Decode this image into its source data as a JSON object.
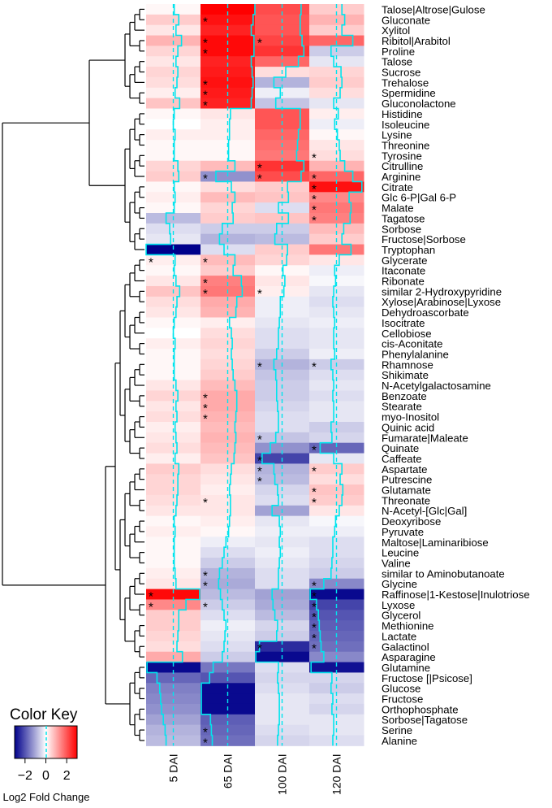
{
  "chart_data": {
    "type": "heatmap",
    "columns": [
      "5 DAI",
      "65 DAI",
      "100 DAI",
      "120 DAI"
    ],
    "rows": [
      "Talose|Altrose|Gulose",
      "Gluconate",
      "Xylitol",
      "Ribitol|Arabitol",
      "Proline",
      "Talose",
      "Sucrose",
      "Trehalose",
      "Spermidine",
      "Gluconolactone",
      "Histidine",
      "Isoleucine",
      "Lysine",
      "Threonine",
      "Tyrosine",
      "Citrulline",
      "Arginine",
      "Citrate",
      "Glc 6-P|Gal 6-P",
      "Malate",
      "Tagatose",
      "Sorbose",
      "Fructose|Sorbose",
      "Tryptophan",
      "Glycerate",
      "Itaconate",
      "Ribonate",
      "similar 2-Hydroxypyridine",
      "Xylose|Arabinose|Lyxose",
      "Dehydroascorbate",
      "Isocitrate",
      "Cellobiose",
      "cis-Aconitate",
      "Phenylalanine",
      "Rhamnose",
      "Shikimate",
      "N-Acetylgalactosamine",
      "Benzoate",
      "Stearate",
      "myo-Inositol",
      "Quinic acid",
      "Fumarate|Maleate",
      "Quinate",
      "Caffeate",
      "Aspartate",
      "Putrescine",
      "Glutamate",
      "Threonate",
      "N-Acetyl-[Glc|Gal]",
      "Deoxyribose",
      "Pyruvate",
      "Maltose|Laminaribiose",
      "Leucine",
      "Valine",
      "similar to Aminobutanoate",
      "Glycine",
      "Raffinose|1-Kestose|Inulotriose",
      "Lyxose",
      "Glycerol",
      "Methionine",
      "Lactate",
      "Galactinol",
      "Asparagine",
      "Glutamine",
      "Fructose [|Psicose]",
      "Glucose",
      "Fructose",
      "Orthophosphate",
      "Sorbose|Tagatose",
      "Serine",
      "Alanine"
    ],
    "values": [
      [
        0.1,
        3.0,
        2.1,
        0.6
      ],
      [
        0.6,
        2.8,
        2.0,
        0.9
      ],
      [
        0.3,
        2.6,
        2.0,
        0.6
      ],
      [
        0.9,
        2.9,
        2.2,
        1.8
      ],
      [
        0.5,
        2.9,
        2.4,
        -0.6
      ],
      [
        0.3,
        2.6,
        1.8,
        -0.3
      ],
      [
        0.5,
        2.7,
        0.4,
        0.5
      ],
      [
        0.4,
        2.8,
        -0.9,
        0.6
      ],
      [
        0.2,
        2.7,
        -0.2,
        0.4
      ],
      [
        0.7,
        2.6,
        -0.7,
        -0.3
      ],
      [
        0.1,
        0.3,
        2.0,
        0.2
      ],
      [
        0.0,
        0.2,
        2.0,
        -0.2
      ],
      [
        0.2,
        0.2,
        1.8,
        0.1
      ],
      [
        0.1,
        0.1,
        1.7,
        0.3
      ],
      [
        0.1,
        0.1,
        1.6,
        0.4
      ],
      [
        0.5,
        0.8,
        2.4,
        0.9
      ],
      [
        0.6,
        -1.3,
        2.1,
        1.8
      ],
      [
        0.1,
        0.4,
        0.6,
        2.8
      ],
      [
        0.2,
        0.8,
        0.7,
        1.4
      ],
      [
        0.1,
        0.5,
        -0.4,
        1.6
      ],
      [
        -0.8,
        0.6,
        0.7,
        1.5
      ],
      [
        -0.4,
        -0.6,
        -0.6,
        0.8
      ],
      [
        -0.3,
        -0.9,
        -0.8,
        0.6
      ],
      [
        -3.0,
        -0.4,
        0.6,
        1.6
      ],
      [
        0.2,
        0.8,
        0.5,
        0.3
      ],
      [
        0.1,
        0.6,
        0.1,
        -0.2
      ],
      [
        0.3,
        1.5,
        0.3,
        -0.1
      ],
      [
        0.7,
        1.6,
        0.2,
        -0.3
      ],
      [
        0.4,
        1.0,
        -0.2,
        -0.4
      ],
      [
        0.3,
        0.9,
        -0.2,
        -0.3
      ],
      [
        0.1,
        0.2,
        -0.3,
        -0.2
      ],
      [
        0.0,
        0.4,
        -0.4,
        -0.3
      ],
      [
        0.2,
        0.5,
        -0.4,
        -0.3
      ],
      [
        0.1,
        0.4,
        -0.6,
        -0.2
      ],
      [
        0.1,
        0.5,
        -0.9,
        -0.6
      ],
      [
        0.1,
        0.6,
        -0.7,
        -0.4
      ],
      [
        0.3,
        0.8,
        -0.6,
        -0.3
      ],
      [
        0.5,
        1.0,
        -0.6,
        -0.4
      ],
      [
        0.3,
        1.0,
        -0.5,
        -0.3
      ],
      [
        0.4,
        0.9,
        -0.4,
        -0.3
      ],
      [
        0.2,
        0.8,
        -0.4,
        -0.6
      ],
      [
        0.3,
        0.9,
        -0.7,
        -0.5
      ],
      [
        0.4,
        0.8,
        -1.3,
        -1.8
      ],
      [
        0.2,
        0.7,
        -2.2,
        -0.3
      ],
      [
        0.6,
        0.4,
        -0.9,
        0.6
      ],
      [
        0.5,
        0.3,
        -0.8,
        0.4
      ],
      [
        0.5,
        0.2,
        -0.5,
        0.7
      ],
      [
        0.4,
        0.3,
        -0.4,
        0.6
      ],
      [
        0.3,
        0.3,
        -1.1,
        0.3
      ],
      [
        0.1,
        0.2,
        -0.3,
        -0.1
      ],
      [
        0.2,
        0.1,
        -0.2,
        -0.2
      ],
      [
        0.1,
        -0.2,
        -0.3,
        -0.4
      ],
      [
        0.1,
        -0.4,
        -0.2,
        -0.4
      ],
      [
        0.1,
        -0.6,
        -0.3,
        -0.5
      ],
      [
        0.2,
        -0.9,
        -0.4,
        -0.6
      ],
      [
        0.3,
        -1.0,
        -0.4,
        -1.4
      ],
      [
        2.9,
        -0.8,
        -1.1,
        -2.9
      ],
      [
        1.4,
        -0.6,
        -1.0,
        -2.2
      ],
      [
        0.6,
        -0.4,
        -0.8,
        -2.0
      ],
      [
        0.6,
        -0.2,
        -0.5,
        -1.9
      ],
      [
        0.5,
        -0.3,
        -0.6,
        -1.8
      ],
      [
        0.4,
        -0.4,
        -2.5,
        -1.7
      ],
      [
        1.0,
        -0.6,
        -2.9,
        -1.4
      ],
      [
        -2.9,
        -1.6,
        -0.4,
        -2.8
      ],
      [
        -1.8,
        -2.0,
        -0.5,
        -0.5
      ],
      [
        -1.5,
        -2.9,
        -0.4,
        -0.6
      ],
      [
        -1.4,
        -2.9,
        -0.3,
        -0.4
      ],
      [
        -1.3,
        -2.9,
        -0.3,
        -0.5
      ],
      [
        -1.1,
        -1.9,
        -0.3,
        -0.3
      ],
      [
        -0.9,
        -1.8,
        -0.4,
        -0.3
      ],
      [
        -0.8,
        -1.7,
        -0.5,
        -0.4
      ]
    ],
    "significance": [
      [
        0,
        0,
        0,
        0
      ],
      [
        0,
        1,
        0,
        0
      ],
      [
        0,
        0,
        0,
        0
      ],
      [
        0,
        1,
        1,
        0
      ],
      [
        0,
        1,
        0,
        0
      ],
      [
        0,
        0,
        0,
        0
      ],
      [
        0,
        0,
        0,
        0
      ],
      [
        0,
        1,
        0,
        0
      ],
      [
        0,
        1,
        0,
        0
      ],
      [
        0,
        1,
        0,
        0
      ],
      [
        0,
        0,
        0,
        0
      ],
      [
        0,
        0,
        0,
        0
      ],
      [
        0,
        0,
        0,
        0
      ],
      [
        0,
        0,
        0,
        0
      ],
      [
        0,
        0,
        0,
        1
      ],
      [
        0,
        0,
        1,
        0
      ],
      [
        0,
        1,
        1,
        1
      ],
      [
        0,
        0,
        0,
        1
      ],
      [
        0,
        0,
        0,
        1
      ],
      [
        0,
        0,
        0,
        1
      ],
      [
        0,
        0,
        0,
        1
      ],
      [
        0,
        0,
        0,
        0
      ],
      [
        0,
        0,
        0,
        0
      ],
      [
        0,
        0,
        0,
        0
      ],
      [
        1,
        1,
        0,
        0
      ],
      [
        0,
        0,
        0,
        0
      ],
      [
        0,
        1,
        0,
        0
      ],
      [
        0,
        1,
        1,
        0
      ],
      [
        0,
        0,
        0,
        0
      ],
      [
        0,
        0,
        0,
        0
      ],
      [
        0,
        0,
        0,
        0
      ],
      [
        0,
        0,
        0,
        0
      ],
      [
        0,
        0,
        0,
        0
      ],
      [
        0,
        0,
        0,
        0
      ],
      [
        0,
        0,
        1,
        1
      ],
      [
        0,
        0,
        0,
        0
      ],
      [
        0,
        0,
        0,
        0
      ],
      [
        0,
        1,
        0,
        0
      ],
      [
        0,
        1,
        0,
        0
      ],
      [
        0,
        1,
        0,
        0
      ],
      [
        0,
        0,
        0,
        0
      ],
      [
        0,
        0,
        1,
        0
      ],
      [
        0,
        0,
        0,
        1
      ],
      [
        0,
        0,
        1,
        0
      ],
      [
        0,
        0,
        1,
        1
      ],
      [
        0,
        0,
        1,
        0
      ],
      [
        0,
        0,
        0,
        1
      ],
      [
        0,
        1,
        0,
        1
      ],
      [
        0,
        0,
        0,
        0
      ],
      [
        0,
        0,
        0,
        0
      ],
      [
        0,
        0,
        0,
        0
      ],
      [
        0,
        0,
        0,
        0
      ],
      [
        0,
        0,
        0,
        0
      ],
      [
        0,
        0,
        0,
        0
      ],
      [
        0,
        1,
        0,
        0
      ],
      [
        0,
        1,
        0,
        1
      ],
      [
        1,
        0,
        0,
        1
      ],
      [
        1,
        1,
        0,
        1
      ],
      [
        0,
        0,
        0,
        1
      ],
      [
        0,
        0,
        0,
        1
      ],
      [
        0,
        0,
        0,
        1
      ],
      [
        0,
        0,
        1,
        1
      ],
      [
        0,
        0,
        0,
        0
      ],
      [
        0,
        0,
        0,
        0
      ],
      [
        0,
        0,
        0,
        0
      ],
      [
        0,
        0,
        0,
        0
      ],
      [
        0,
        0,
        0,
        0
      ],
      [
        0,
        0,
        0,
        0
      ],
      [
        0,
        0,
        0,
        0
      ],
      [
        0,
        1,
        0,
        0
      ],
      [
        0,
        1,
        0,
        0
      ]
    ],
    "significance_marker": "*",
    "color_scale": {
      "low": "#00008b",
      "mid": "#ffffff",
      "high": "#ff0000",
      "range": [
        -3,
        3
      ]
    },
    "trace_color": "#00e5ee",
    "color_key": {
      "title": "Color Key",
      "xlabel": "Log2 Fold Change",
      "tick_labels": [
        "−2",
        "0",
        "2"
      ],
      "tick_values": [
        -2,
        0,
        2
      ]
    }
  }
}
